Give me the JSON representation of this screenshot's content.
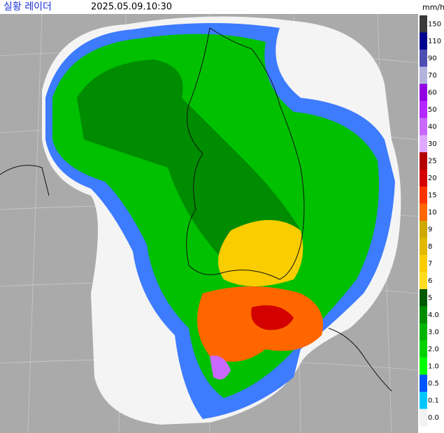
{
  "header": {
    "title": "실황 레이더",
    "timestamp": "2025.05.09.10:30",
    "unit": "mm/h"
  },
  "legend": {
    "items": [
      {
        "label": "150",
        "color": "#3a3a3a"
      },
      {
        "label": "110",
        "color": "#000390"
      },
      {
        "label": "90",
        "color": "#4c4eb1"
      },
      {
        "label": "70",
        "color": "#b3b4de"
      },
      {
        "label": "60",
        "color": "#9300e4"
      },
      {
        "label": "50",
        "color": "#b329ff"
      },
      {
        "label": "40",
        "color": "#c969ff"
      },
      {
        "label": "30",
        "color": "#e0a9ff"
      },
      {
        "label": "25",
        "color": "#b40000"
      },
      {
        "label": "20",
        "color": "#d20000"
      },
      {
        "label": "15",
        "color": "#ff3300"
      },
      {
        "label": "10",
        "color": "#ff6600"
      },
      {
        "label": "9",
        "color": "#ccaa00"
      },
      {
        "label": "8",
        "color": "#e0b900"
      },
      {
        "label": "7",
        "color": "#f9cd00"
      },
      {
        "label": "6",
        "color": "#ffdc1f"
      },
      {
        "label": "5",
        "color": "#005a00"
      },
      {
        "label": "4.0",
        "color": "#008c00"
      },
      {
        "label": "3.0",
        "color": "#00b400"
      },
      {
        "label": "2.0",
        "color": "#00d200"
      },
      {
        "label": "1.0",
        "color": "#00ff00"
      },
      {
        "label": "0.5",
        "color": "#0055ff"
      },
      {
        "label": "0.1",
        "color": "#00c8ff"
      },
      {
        "label": "0.0",
        "color": "#f2f2f2"
      }
    ]
  }
}
